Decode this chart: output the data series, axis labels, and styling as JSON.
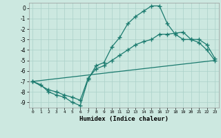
{
  "xlabel": "Humidex (Indice chaleur)",
  "bg_color": "#cce8e0",
  "grid_color": "#aad0c8",
  "line_color": "#1a7a6e",
  "xlim": [
    -0.5,
    23.5
  ],
  "ylim": [
    -9.5,
    0.5
  ],
  "line1_x": [
    0,
    1,
    2,
    3,
    4,
    5,
    6,
    7,
    8,
    9,
    10,
    11,
    12,
    13,
    14,
    15,
    16,
    17,
    18,
    19,
    20,
    21,
    22,
    23
  ],
  "line1_y": [
    -7.0,
    -7.3,
    -8.0,
    -8.3,
    -8.5,
    -9.0,
    -9.3,
    -6.8,
    -5.5,
    -5.2,
    -3.7,
    -2.8,
    -1.5,
    -0.8,
    -0.3,
    0.2,
    0.2,
    -1.5,
    -2.5,
    -3.0,
    -3.0,
    -3.3,
    -4.0,
    -5.0
  ],
  "line2_x": [
    0,
    2,
    3,
    4,
    5,
    6,
    7,
    8,
    9,
    10,
    11,
    12,
    13,
    14,
    15,
    16,
    17,
    18,
    19,
    20,
    21,
    22,
    23
  ],
  "line2_y": [
    -7.0,
    -7.8,
    -8.0,
    -8.3,
    -8.5,
    -8.8,
    -6.7,
    -5.8,
    -5.5,
    -5.0,
    -4.5,
    -4.0,
    -3.5,
    -3.2,
    -3.0,
    -2.5,
    -2.5,
    -2.4,
    -2.3,
    -3.0,
    -3.0,
    -3.5,
    -4.8
  ],
  "line3_x": [
    0,
    23
  ],
  "line3_y": [
    -7.0,
    -5.0
  ],
  "yticks": [
    0,
    -1,
    -2,
    -3,
    -4,
    -5,
    -6,
    -7,
    -8,
    -9
  ],
  "xticks": [
    0,
    1,
    2,
    3,
    4,
    5,
    6,
    7,
    8,
    9,
    10,
    11,
    12,
    13,
    14,
    15,
    16,
    17,
    18,
    19,
    20,
    21,
    22,
    23
  ]
}
